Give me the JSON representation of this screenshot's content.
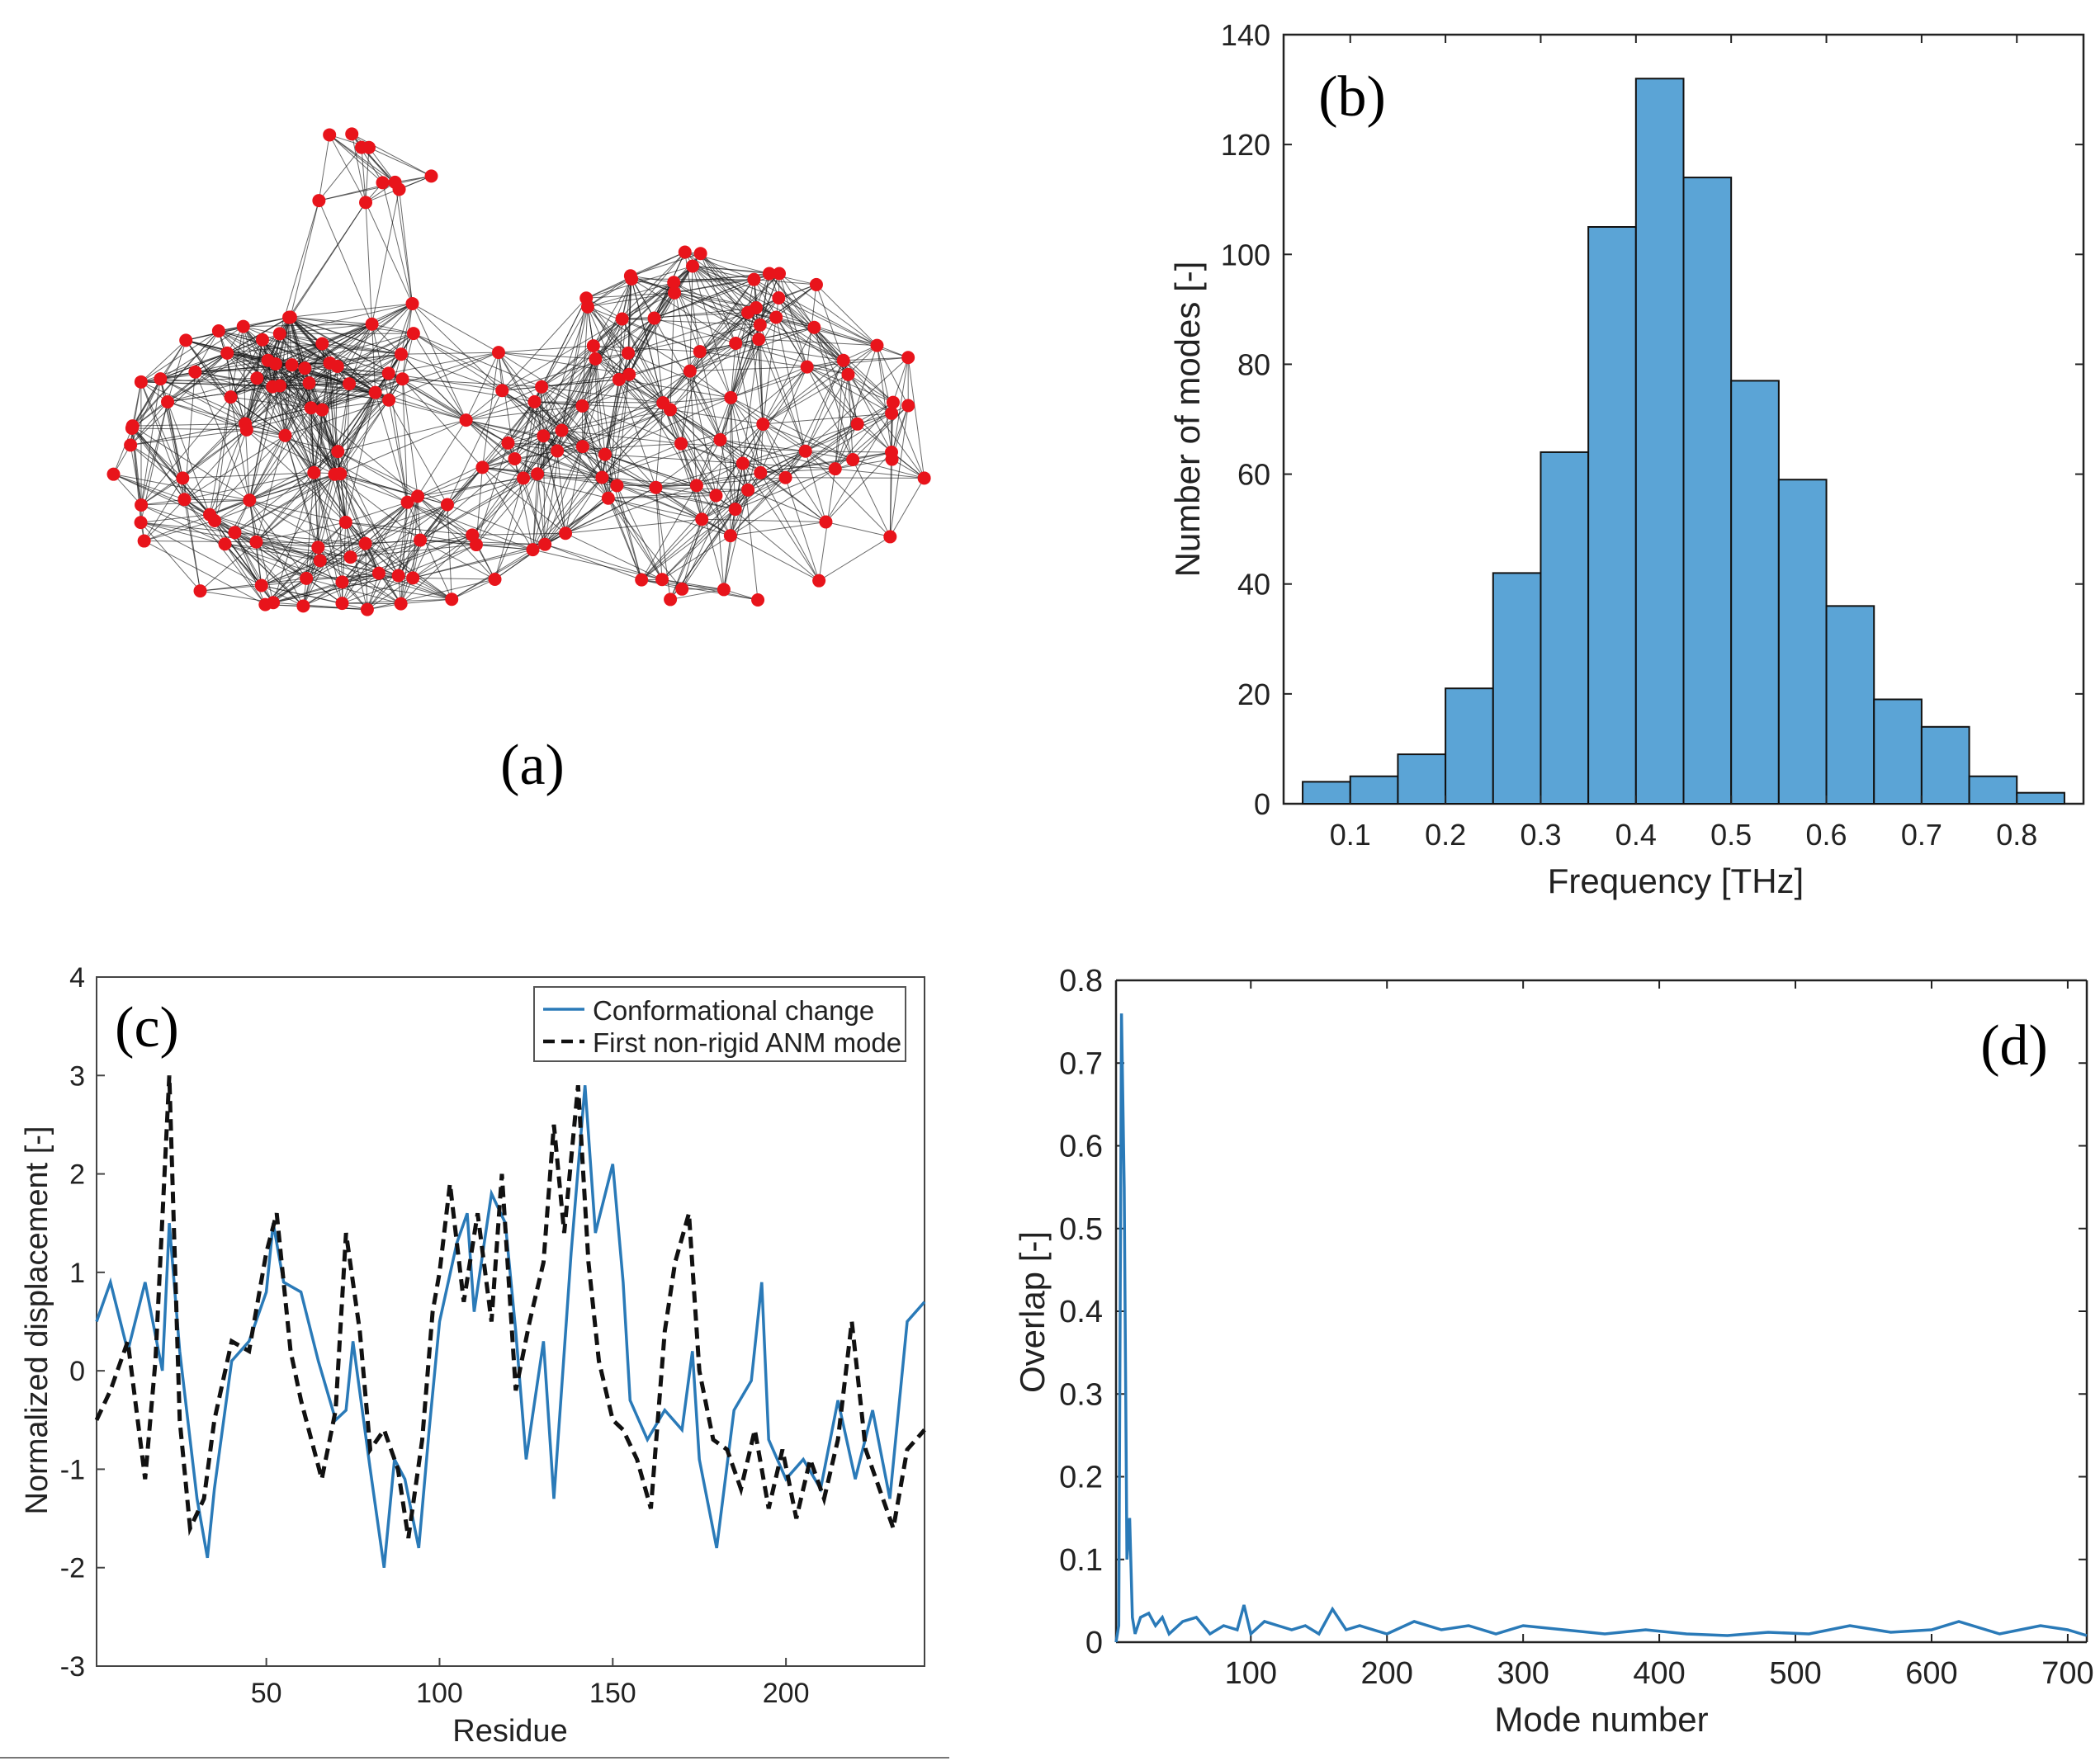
{
  "colors": {
    "node": "#e8141b",
    "edge": "#1a1a1a",
    "bar_fill": "#5ba4d6",
    "line_blue": "#2a7ab8",
    "line_dash": "#111111",
    "axis": "#222222"
  },
  "panels": {
    "a": {
      "label": "(a)"
    },
    "b": {
      "label": "(b)"
    },
    "c": {
      "label": "(c)"
    },
    "d": {
      "label": "(d)"
    }
  },
  "chart_data": [
    {
      "id": "b",
      "type": "bar",
      "title": "",
      "xlabel": "Frequency [THz]",
      "ylabel": "Number of modes [-]",
      "xlim": [
        0.03,
        0.87
      ],
      "ylim": [
        0,
        140
      ],
      "x_ticks": [
        0.1,
        0.2,
        0.3,
        0.4,
        0.5,
        0.6,
        0.7,
        0.8
      ],
      "y_ticks": [
        0,
        20,
        40,
        60,
        80,
        100,
        120,
        140
      ],
      "bin_edges": [
        0.05,
        0.1,
        0.15,
        0.2,
        0.25,
        0.3,
        0.35,
        0.4,
        0.45,
        0.5,
        0.55,
        0.6,
        0.65,
        0.7,
        0.75,
        0.8,
        0.85
      ],
      "values": [
        4,
        5,
        9,
        21,
        42,
        64,
        105,
        132,
        114,
        77,
        59,
        36,
        19,
        14,
        5,
        2
      ],
      "grid": false
    },
    {
      "id": "c",
      "type": "line",
      "title": "",
      "xlabel": "Residue",
      "ylabel": "Normalized displacement [-]",
      "xlim": [
        1,
        240
      ],
      "ylim": [
        -3,
        4
      ],
      "x_ticks": [
        50,
        100,
        150,
        200
      ],
      "y_ticks": [
        -3,
        -2,
        -1,
        0,
        1,
        2,
        3,
        4
      ],
      "legend": "top-right",
      "grid": false,
      "series": [
        {
          "name": "Conformational change",
          "x": [
            1,
            5,
            10,
            15,
            20,
            22,
            25,
            30,
            33,
            35,
            40,
            45,
            50,
            52,
            55,
            60,
            65,
            70,
            73,
            75,
            80,
            84,
            87,
            90,
            94,
            97,
            100,
            105,
            108,
            110,
            115,
            119,
            122,
            125,
            130,
            133,
            135,
            138,
            142,
            145,
            150,
            153,
            155,
            160,
            165,
            170,
            173,
            175,
            180,
            185,
            190,
            193,
            195,
            200,
            205,
            210,
            215,
            220,
            225,
            230,
            235,
            240
          ],
          "y": [
            0.5,
            0.9,
            0.2,
            0.9,
            0.0,
            1.5,
            0.2,
            -1.3,
            -1.9,
            -1.2,
            0.1,
            0.3,
            0.8,
            1.5,
            0.9,
            0.8,
            0.1,
            -0.5,
            -0.4,
            0.3,
            -1.0,
            -2.0,
            -0.9,
            -1.1,
            -1.8,
            -0.6,
            0.5,
            1.3,
            1.6,
            0.6,
            1.8,
            1.5,
            0.4,
            -0.9,
            0.3,
            -1.3,
            -0.3,
            1.2,
            2.9,
            1.4,
            2.1,
            0.9,
            -0.3,
            -0.7,
            -0.4,
            -0.6,
            0.2,
            -0.9,
            -1.8,
            -0.4,
            -0.1,
            0.9,
            -0.7,
            -1.1,
            -0.9,
            -1.2,
            -0.3,
            -1.1,
            -0.4,
            -1.3,
            0.5,
            0.7
          ]
        },
        {
          "name": "First non-rigid ANM mode",
          "x": [
            1,
            5,
            10,
            15,
            18,
            22,
            25,
            28,
            32,
            35,
            40,
            45,
            50,
            53,
            57,
            60,
            63,
            66,
            70,
            73,
            77,
            80,
            84,
            88,
            91,
            95,
            98,
            100,
            103,
            107,
            111,
            115,
            118,
            122,
            126,
            130,
            133,
            136,
            140,
            143,
            146,
            150,
            153,
            157,
            161,
            165,
            168,
            172,
            175,
            179,
            183,
            187,
            191,
            195,
            199,
            203,
            207,
            211,
            215,
            219,
            223,
            227,
            231,
            235,
            240
          ],
          "y": [
            -0.5,
            -0.2,
            0.3,
            -1.1,
            0.1,
            3.0,
            -0.5,
            -1.6,
            -1.3,
            -0.5,
            0.3,
            0.2,
            1.2,
            1.6,
            0.2,
            -0.3,
            -0.7,
            -1.1,
            -0.4,
            1.4,
            0.4,
            -0.8,
            -0.6,
            -1.0,
            -1.7,
            -0.7,
            0.6,
            1.0,
            1.9,
            0.7,
            1.6,
            0.5,
            2.0,
            -0.2,
            0.5,
            1.1,
            2.5,
            1.4,
            2.9,
            1.1,
            0.1,
            -0.5,
            -0.6,
            -0.9,
            -1.4,
            0.4,
            1.1,
            1.6,
            0.0,
            -0.7,
            -0.8,
            -1.2,
            -0.6,
            -1.4,
            -0.8,
            -1.5,
            -0.9,
            -1.3,
            -0.7,
            0.5,
            -0.8,
            -1.2,
            -1.6,
            -0.8,
            -0.6
          ]
        }
      ]
    },
    {
      "id": "d",
      "type": "line",
      "title": "",
      "xlabel": "Mode number",
      "ylabel": "Overlap [-]",
      "xlim": [
        1,
        714
      ],
      "ylim": [
        0,
        0.8
      ],
      "x_ticks": [
        100,
        200,
        300,
        400,
        500,
        600,
        700
      ],
      "y_ticks": [
        0,
        0.1,
        0.2,
        0.3,
        0.4,
        0.5,
        0.6,
        0.7,
        0.8
      ],
      "grid": false,
      "series": [
        {
          "name": "",
          "x": [
            1,
            3,
            5,
            7,
            9,
            11,
            13,
            15,
            17,
            19,
            25,
            30,
            35,
            40,
            50,
            60,
            70,
            80,
            90,
            95,
            100,
            110,
            120,
            130,
            140,
            150,
            160,
            170,
            180,
            200,
            220,
            240,
            260,
            280,
            300,
            330,
            360,
            390,
            420,
            450,
            480,
            510,
            540,
            570,
            600,
            620,
            650,
            680,
            700,
            714
          ],
          "y": [
            0.0,
            0.02,
            0.76,
            0.55,
            0.1,
            0.15,
            0.03,
            0.01,
            0.02,
            0.03,
            0.035,
            0.02,
            0.03,
            0.01,
            0.025,
            0.03,
            0.01,
            0.02,
            0.015,
            0.045,
            0.01,
            0.025,
            0.02,
            0.015,
            0.02,
            0.01,
            0.04,
            0.015,
            0.02,
            0.01,
            0.025,
            0.015,
            0.02,
            0.01,
            0.02,
            0.015,
            0.01,
            0.015,
            0.01,
            0.008,
            0.012,
            0.01,
            0.02,
            0.012,
            0.015,
            0.025,
            0.01,
            0.02,
            0.015,
            0.008
          ]
        }
      ]
    }
  ]
}
